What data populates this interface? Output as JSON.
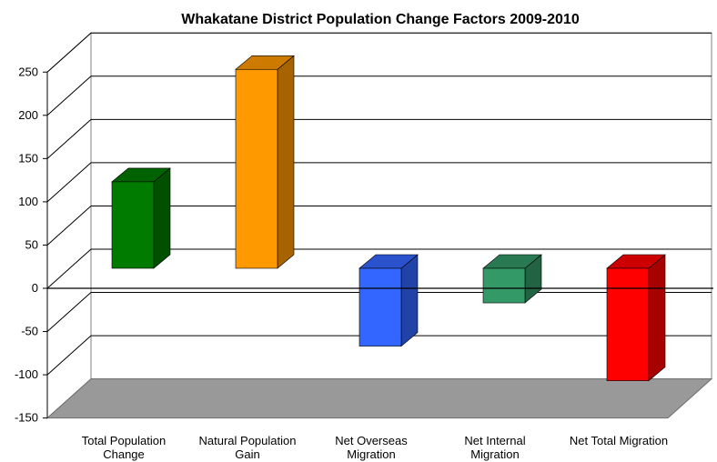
{
  "chart_data": {
    "type": "bar",
    "title": "Whakatane District Population Change Factors 2009-2010",
    "xlabel": "",
    "ylabel": "",
    "ylim": [
      -150,
      250
    ],
    "yticks": [
      -150,
      -100,
      -50,
      0,
      50,
      100,
      150,
      200,
      250
    ],
    "grid": true,
    "three_d": true,
    "categories": [
      [
        "Total Population",
        "Change"
      ],
      [
        "Natural Population",
        "Gain"
      ],
      [
        "Net Overseas",
        "Migration"
      ],
      [
        "Net Internal",
        "Migration"
      ],
      [
        "Net Total Migration"
      ]
    ],
    "values": [
      100,
      230,
      -90,
      -40,
      -130
    ],
    "colors": {
      "bars": [
        "#007b00",
        "#ff9900",
        "#3366ff",
        "#339966",
        "#ff0000"
      ],
      "floor": "#999999",
      "grid": "#000000"
    }
  }
}
